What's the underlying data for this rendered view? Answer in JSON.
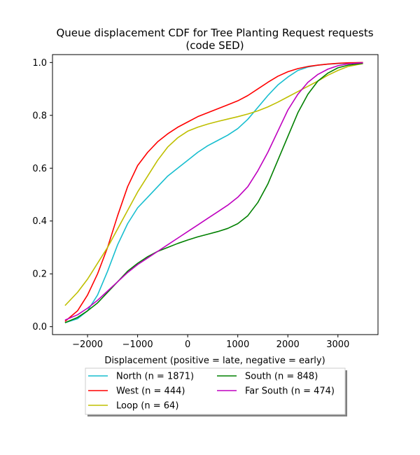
{
  "chart_data": {
    "type": "line",
    "title_lines": [
      "Queue displacement CDF for Tree Planting Request  requests",
      "(code SED)"
    ],
    "xlabel": "Displacement (positive = late, negative = early)",
    "ylabel": "",
    "xlim": [
      -2700,
      3800
    ],
    "ylim": [
      -0.03,
      1.03
    ],
    "x_ticks": [
      -2000,
      -1000,
      0,
      1000,
      2000,
      3000
    ],
    "x_tick_labels": [
      "−2000",
      "−1000",
      "0",
      "1000",
      "2000",
      "3000"
    ],
    "y_ticks": [
      0.0,
      0.2,
      0.4,
      0.6,
      0.8,
      1.0
    ],
    "y_tick_labels": [
      "0.0",
      "0.2",
      "0.4",
      "0.6",
      "0.8",
      "1.0"
    ],
    "grid": false,
    "legend_position": "below plot, two columns",
    "series": [
      {
        "name": "North (n = 1871)",
        "color": "#17becf",
        "x": [
          -2450,
          -2200,
          -2000,
          -1800,
          -1600,
          -1400,
          -1200,
          -1000,
          -800,
          -600,
          -400,
          -200,
          0,
          200,
          400,
          600,
          800,
          1000,
          1200,
          1400,
          1600,
          1800,
          2000,
          2200,
          2400,
          2600,
          2800,
          3000,
          3200,
          3500
        ],
        "y": [
          0.015,
          0.03,
          0.06,
          0.12,
          0.21,
          0.31,
          0.39,
          0.45,
          0.49,
          0.53,
          0.57,
          0.6,
          0.63,
          0.66,
          0.685,
          0.705,
          0.725,
          0.75,
          0.785,
          0.83,
          0.875,
          0.915,
          0.945,
          0.97,
          0.983,
          0.99,
          0.994,
          0.996,
          0.998,
          1.0
        ]
      },
      {
        "name": "West (n = 444)",
        "color": "#ff0000",
        "x": [
          -2450,
          -2200,
          -2000,
          -1800,
          -1600,
          -1400,
          -1200,
          -1000,
          -800,
          -600,
          -400,
          -200,
          0,
          200,
          400,
          600,
          800,
          1000,
          1200,
          1400,
          1600,
          1800,
          2000,
          2200,
          2400,
          2600,
          2800,
          3000,
          3200,
          3500
        ],
        "y": [
          0.02,
          0.06,
          0.12,
          0.2,
          0.3,
          0.42,
          0.53,
          0.61,
          0.66,
          0.7,
          0.73,
          0.755,
          0.775,
          0.795,
          0.81,
          0.825,
          0.84,
          0.855,
          0.875,
          0.9,
          0.925,
          0.948,
          0.965,
          0.977,
          0.985,
          0.99,
          0.994,
          0.997,
          0.999,
          1.0
        ]
      },
      {
        "name": "Loop (n = 64)",
        "color": "#bfbf00",
        "x": [
          -2450,
          -2200,
          -2000,
          -1800,
          -1600,
          -1400,
          -1200,
          -1000,
          -800,
          -600,
          -400,
          -200,
          0,
          200,
          400,
          600,
          800,
          1000,
          1200,
          1400,
          1600,
          1800,
          2000,
          2200,
          2400,
          2600,
          2800,
          3000,
          3200,
          3500
        ],
        "y": [
          0.08,
          0.13,
          0.18,
          0.24,
          0.3,
          0.37,
          0.44,
          0.51,
          0.57,
          0.63,
          0.68,
          0.715,
          0.74,
          0.755,
          0.767,
          0.777,
          0.786,
          0.795,
          0.805,
          0.817,
          0.832,
          0.85,
          0.87,
          0.89,
          0.91,
          0.93,
          0.952,
          0.97,
          0.985,
          0.996
        ]
      },
      {
        "name": "South (n = 848)",
        "color": "#008000",
        "x": [
          -2450,
          -2200,
          -2000,
          -1800,
          -1600,
          -1400,
          -1200,
          -1000,
          -800,
          -600,
          -400,
          -200,
          0,
          200,
          400,
          600,
          800,
          1000,
          1200,
          1400,
          1600,
          1800,
          2000,
          2200,
          2400,
          2600,
          2800,
          3000,
          3200,
          3500
        ],
        "y": [
          0.015,
          0.035,
          0.06,
          0.09,
          0.13,
          0.17,
          0.21,
          0.24,
          0.265,
          0.285,
          0.3,
          0.315,
          0.328,
          0.34,
          0.35,
          0.36,
          0.372,
          0.39,
          0.42,
          0.47,
          0.54,
          0.63,
          0.72,
          0.81,
          0.88,
          0.93,
          0.96,
          0.98,
          0.99,
          0.997
        ]
      },
      {
        "name": "Far South (n = 474)",
        "color": "#bf00bf",
        "x": [
          -2450,
          -2200,
          -2000,
          -1800,
          -1600,
          -1400,
          -1200,
          -1000,
          -800,
          -600,
          -400,
          -200,
          0,
          200,
          400,
          600,
          800,
          1000,
          1200,
          1400,
          1600,
          1800,
          2000,
          2200,
          2400,
          2600,
          2800,
          3000,
          3200,
          3500
        ],
        "y": [
          0.025,
          0.045,
          0.07,
          0.1,
          0.135,
          0.17,
          0.205,
          0.235,
          0.26,
          0.285,
          0.31,
          0.335,
          0.36,
          0.385,
          0.41,
          0.435,
          0.46,
          0.49,
          0.53,
          0.59,
          0.66,
          0.74,
          0.82,
          0.88,
          0.925,
          0.955,
          0.975,
          0.988,
          0.995,
          0.999
        ]
      }
    ]
  }
}
